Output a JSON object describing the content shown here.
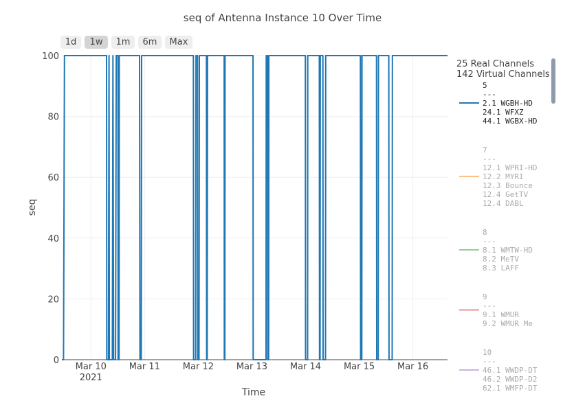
{
  "chart_data": {
    "type": "line",
    "title": "seq of Antenna Instance 10 Over Time",
    "xlabel": "Time",
    "ylabel": "seq",
    "ylim": [
      0,
      100
    ],
    "yticks": [
      0,
      20,
      40,
      60,
      80,
      100
    ],
    "xrange": [
      "2021-03-09 11:00",
      "2021-03-16 15:30"
    ],
    "xticks": [
      {
        "t": "2021-03-10",
        "label": "Mar 10",
        "sub": "2021"
      },
      {
        "t": "2021-03-11",
        "label": "Mar 11",
        "sub": ""
      },
      {
        "t": "2021-03-12",
        "label": "Mar 12",
        "sub": ""
      },
      {
        "t": "2021-03-13",
        "label": "Mar 13",
        "sub": ""
      },
      {
        "t": "2021-03-14",
        "label": "Mar 14",
        "sub": ""
      },
      {
        "t": "2021-03-15",
        "label": "Mar 15",
        "sub": ""
      },
      {
        "t": "2021-03-16",
        "label": "Mar 16",
        "sub": ""
      }
    ],
    "grid": true,
    "series": [
      {
        "name": "5",
        "color": "#1f77b4",
        "points": [
          [
            "2021-03-09 11:00",
            0
          ],
          [
            "2021-03-09 11:45",
            0
          ],
          [
            "2021-03-09 12:10",
            100
          ],
          [
            "2021-03-10 07:00",
            100
          ],
          [
            "2021-03-10 07:05",
            0
          ],
          [
            "2021-03-10 07:50",
            0
          ],
          [
            "2021-03-10 08:05",
            100
          ],
          [
            "2021-03-10 08:15",
            0
          ],
          [
            "2021-03-10 09:35",
            0
          ],
          [
            "2021-03-10 09:50",
            100
          ],
          [
            "2021-03-10 10:10",
            0
          ],
          [
            "2021-03-10 11:00",
            0
          ],
          [
            "2021-03-10 11:20",
            100
          ],
          [
            "2021-03-10 12:05",
            100
          ],
          [
            "2021-03-10 12:10",
            0
          ],
          [
            "2021-03-10 12:35",
            0
          ],
          [
            "2021-03-10 12:40",
            100
          ],
          [
            "2021-03-10 21:45",
            100
          ],
          [
            "2021-03-10 21:55",
            0
          ],
          [
            "2021-03-10 22:30",
            0
          ],
          [
            "2021-03-10 22:40",
            100
          ],
          [
            "2021-03-11 21:50",
            100
          ],
          [
            "2021-03-11 21:55",
            0
          ],
          [
            "2021-03-11 22:50",
            0
          ],
          [
            "2021-03-11 23:00",
            100
          ],
          [
            "2021-03-11 23:40",
            100
          ],
          [
            "2021-03-11 23:45",
            0
          ],
          [
            "2021-03-12 00:20",
            0
          ],
          [
            "2021-03-12 00:30",
            100
          ],
          [
            "2021-03-12 03:40",
            100
          ],
          [
            "2021-03-12 03:45",
            0
          ],
          [
            "2021-03-12 04:00",
            0
          ],
          [
            "2021-03-12 04:10",
            100
          ],
          [
            "2021-03-12 11:35",
            100
          ],
          [
            "2021-03-12 11:40",
            0
          ],
          [
            "2021-03-12 11:55",
            0
          ],
          [
            "2021-03-12 12:00",
            100
          ],
          [
            "2021-03-13 00:30",
            100
          ],
          [
            "2021-03-13 00:35",
            0
          ],
          [
            "2021-03-13 06:20",
            0
          ],
          [
            "2021-03-13 06:25",
            100
          ],
          [
            "2021-03-13 07:00",
            100
          ],
          [
            "2021-03-13 07:05",
            0
          ],
          [
            "2021-03-13 07:30",
            0
          ],
          [
            "2021-03-13 07:35",
            100
          ],
          [
            "2021-03-13 23:55",
            100
          ],
          [
            "2021-03-14 00:00",
            0
          ],
          [
            "2021-03-14 00:55",
            0
          ],
          [
            "2021-03-14 01:00",
            100
          ],
          [
            "2021-03-14 06:10",
            100
          ],
          [
            "2021-03-14 06:15",
            0
          ],
          [
            "2021-03-14 06:30",
            0
          ],
          [
            "2021-03-14 06:35",
            100
          ],
          [
            "2021-03-14 07:45",
            100
          ],
          [
            "2021-03-14 07:50",
            0
          ],
          [
            "2021-03-14 08:55",
            0
          ],
          [
            "2021-03-14 09:00",
            100
          ],
          [
            "2021-03-14 10:55",
            100
          ],
          [
            "2021-03-15 00:35",
            100
          ],
          [
            "2021-03-15 00:40",
            0
          ],
          [
            "2021-03-15 01:10",
            0
          ],
          [
            "2021-03-15 01:15",
            100
          ],
          [
            "2021-03-15 07:45",
            100
          ],
          [
            "2021-03-15 07:50",
            0
          ],
          [
            "2021-03-15 08:30",
            0
          ],
          [
            "2021-03-15 08:35",
            100
          ],
          [
            "2021-03-15 13:15",
            100
          ],
          [
            "2021-03-15 13:20",
            0
          ],
          [
            "2021-03-15 14:45",
            0
          ],
          [
            "2021-03-15 14:50",
            100
          ],
          [
            "2021-03-16 15:30",
            100
          ]
        ]
      }
    ]
  },
  "range_buttons": [
    {
      "label": "1d",
      "active": false
    },
    {
      "label": "1w",
      "active": true
    },
    {
      "label": "1m",
      "active": false
    },
    {
      "label": "6m",
      "active": false
    },
    {
      "label": "Max",
      "active": false
    }
  ],
  "legend": {
    "header_line1": "25 Real Channels",
    "header_line2": "142 Virtual Channels",
    "items": [
      {
        "name": "5",
        "sep": "---",
        "channels": [
          "2.1 WGBH-HD",
          "24.1 WFXZ",
          "44.1 WGBX-HD"
        ],
        "color": "#1f77b4",
        "visible": true
      },
      {
        "name": "7",
        "sep": "---",
        "channels": [
          "12.1 WPRI-HD",
          "12.2 MYRI",
          "12.3 Bounce",
          "12.4 GetTV",
          "12.4 DABL"
        ],
        "color": "#ff7f0e",
        "visible": false
      },
      {
        "name": "8",
        "sep": "---",
        "channels": [
          "8.1 WMTW-HD",
          "8.2 MeTV",
          "8.3 LAFF"
        ],
        "color": "#2ca02c",
        "visible": false
      },
      {
        "name": "9",
        "sep": "---",
        "channels": [
          "9.1 WMUR",
          "9.2 WMUR Me"
        ],
        "color": "#d62728",
        "visible": false
      },
      {
        "name": "10",
        "sep": "---",
        "channels": [
          "46.1 WWDP-DT",
          "46.2 WWDP-D2",
          "62.1 WMFP-DT"
        ],
        "color": "#9467bd",
        "visible": false
      }
    ]
  }
}
